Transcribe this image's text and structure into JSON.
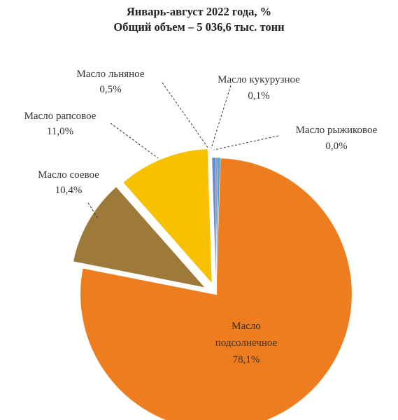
{
  "chart_data": {
    "type": "pie",
    "title": "Январь-август 2022 года, %",
    "subtitle": "Общий объем – 5 036,6 тыс. тонн",
    "slices": [
      {
        "label": [
          "Масло",
          "подсолнечное"
        ],
        "value_text": "78,1%",
        "value": 78.1,
        "color": "#ED7D1E"
      },
      {
        "label": [
          "Масло соевое"
        ],
        "value_text": "10,4%",
        "value": 10.4,
        "color": "#9E7A3A"
      },
      {
        "label": [
          "Масло рапсовое"
        ],
        "value_text": "11,0%",
        "value": 11.0,
        "color": "#F7C100"
      },
      {
        "label": [
          "Масло льняное"
        ],
        "value_text": "0,5%",
        "value": 0.5,
        "color": "#6E8ACF"
      },
      {
        "label": [
          "Масло кукурузное"
        ],
        "value_text": "0,1%",
        "value": 0.1,
        "color": "#5E7C96"
      },
      {
        "label": [
          "Масло рыжиковое"
        ],
        "value_text": "0,0%",
        "value": 0.0,
        "color": "#4E9FD8"
      }
    ]
  }
}
